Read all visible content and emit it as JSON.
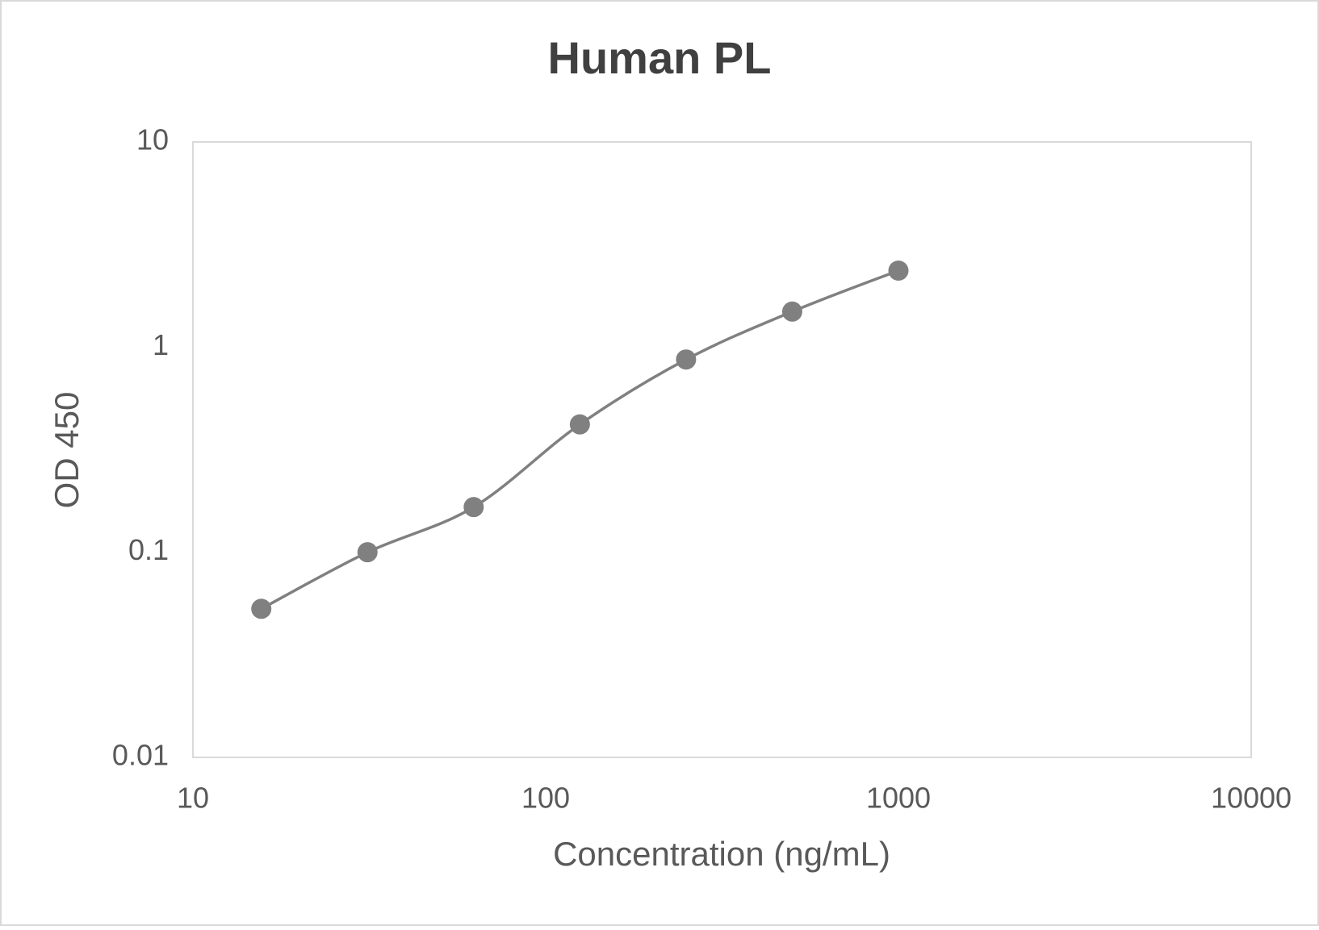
{
  "chart_data": {
    "type": "line",
    "title": "Human PL",
    "x_label": "Concentration (ng/mL)",
    "y_label": "OD 450",
    "x": [
      15.625,
      31.25,
      62.5,
      125,
      250,
      500,
      1000
    ],
    "series": [
      {
        "name": "Human PL",
        "color": "#808080",
        "values": [
          0.053,
          0.1,
          0.166,
          0.42,
          0.87,
          1.49,
          2.36
        ]
      }
    ],
    "x_scale": "log",
    "y_scale": "log",
    "smooth": true,
    "markers": true,
    "grid": false,
    "legend": false,
    "xlim": [
      10,
      10000
    ],
    "xticks": [
      10,
      100,
      1000,
      10000
    ],
    "ylim": [
      0.01,
      10
    ],
    "yticks": [
      0.01,
      0.1,
      1,
      10
    ]
  }
}
